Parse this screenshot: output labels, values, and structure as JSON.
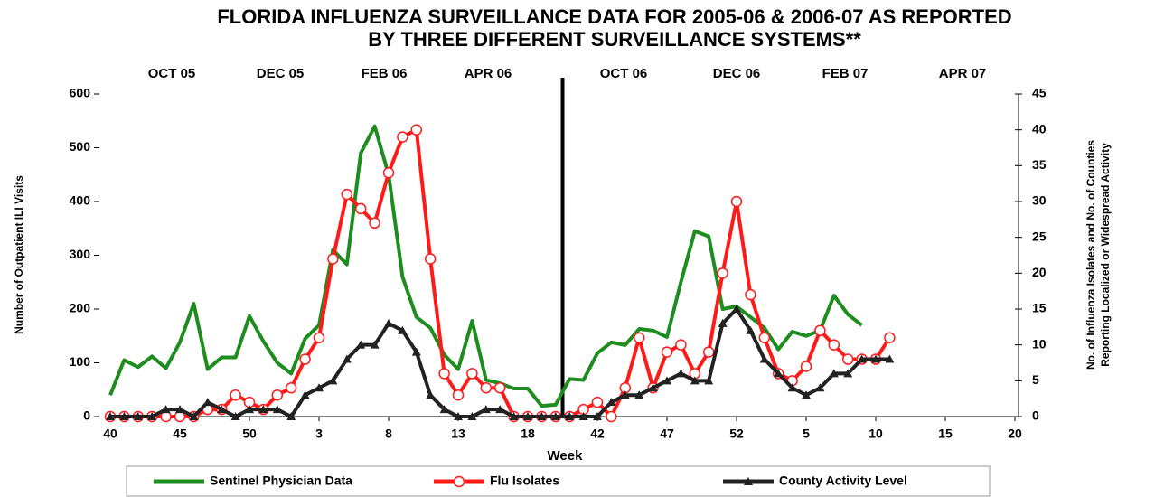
{
  "chart_data": {
    "type": "line",
    "title": [
      "FLORIDA INFLUENZA SURVEILLANCE DATA FOR 2005-06 & 2006-07 AS REPORTED",
      "BY THREE DIFFERENT SURVEILLANCE SYSTEMS**"
    ],
    "top_labels": [
      "OCT 05",
      "DEC 05",
      "FEB 06",
      "APR 06",
      "OCT 06",
      "DEC 06",
      "FEB 07",
      "APR 07"
    ],
    "x_label": "Week",
    "y_label": "Number of Outpatient ILI Visits",
    "y2_label": [
      "No. of Influenza Isolates and No. of Counties",
      "Reporting Localized or Widespread Activity"
    ],
    "categories": [
      "40",
      null,
      null,
      null,
      null,
      "45",
      null,
      null,
      null,
      null,
      "50",
      null,
      null,
      null,
      null,
      "3",
      null,
      null,
      null,
      null,
      "8",
      null,
      null,
      null,
      null,
      "13",
      null,
      null,
      null,
      null,
      "18",
      null,
      null,
      null,
      null,
      "42",
      null,
      null,
      null,
      null,
      "47",
      null,
      null,
      null,
      null,
      "52",
      null,
      null,
      null,
      null,
      "5",
      null,
      null,
      null,
      null,
      "10",
      null,
      null,
      null,
      null,
      "15",
      null,
      null,
      null,
      null,
      "20"
    ],
    "ylim": [
      0,
      600
    ],
    "yticks": [
      0,
      100,
      200,
      300,
      400,
      500,
      600
    ],
    "y2lim": [
      0,
      45
    ],
    "y2ticks": [
      0,
      5,
      10,
      15,
      20,
      25,
      30,
      35,
      40,
      45
    ],
    "legend": "bottom",
    "series": [
      {
        "name": "Sentinel Physician Data",
        "color": "#1e8c1e",
        "marker": "none",
        "values": [
          40,
          105,
          92,
          112,
          90,
          138,
          210,
          88,
          110,
          110,
          187,
          140,
          100,
          80,
          145,
          170,
          310,
          283,
          490,
          540,
          450,
          260,
          185,
          165,
          115,
          88,
          178,
          68,
          62,
          52,
          52,
          20,
          22,
          70,
          68,
          118,
          138,
          133,
          163,
          160,
          148,
          250,
          345,
          335,
          200,
          205,
          185,
          165,
          125,
          158,
          150,
          160,
          225,
          190,
          170,
          null,
          null,
          null,
          null,
          null,
          null,
          null,
          null,
          null,
          null,
          null
        ]
      },
      {
        "name": "Flu Isolates",
        "color": "#ff1a1a",
        "marker": "circle",
        "axis": "y2",
        "values": [
          0,
          0,
          0,
          0,
          0,
          0,
          0,
          1,
          1,
          3,
          2,
          1,
          3,
          4,
          8,
          11,
          22,
          31,
          29,
          27,
          34,
          39,
          40,
          22,
          6,
          3,
          6,
          4,
          4,
          0,
          0,
          0,
          0,
          0,
          1,
          2,
          0,
          4,
          11,
          4,
          9,
          10,
          6,
          9,
          20,
          30,
          17,
          11,
          6,
          5,
          7,
          12,
          10,
          8,
          8,
          8,
          11,
          null,
          null,
          null,
          null,
          null,
          null,
          null,
          null,
          null
        ]
      },
      {
        "name": "County Activity Level",
        "color": "#222222",
        "marker": "triangle",
        "axis": "y2",
        "values": [
          0,
          0,
          0,
          0,
          1,
          1,
          0,
          2,
          1,
          0,
          1,
          1,
          1,
          0,
          3,
          4,
          5,
          8,
          10,
          10,
          13,
          12,
          9,
          3,
          1,
          0,
          0,
          1,
          1,
          0,
          0,
          0,
          0,
          0,
          0,
          0,
          2,
          3,
          3,
          4,
          5,
          6,
          5,
          5,
          13,
          15,
          12,
          8,
          6,
          4,
          3,
          4,
          6,
          6,
          8,
          8,
          8,
          null,
          null,
          null,
          null,
          null,
          null,
          null,
          null,
          null
        ]
      }
    ]
  }
}
